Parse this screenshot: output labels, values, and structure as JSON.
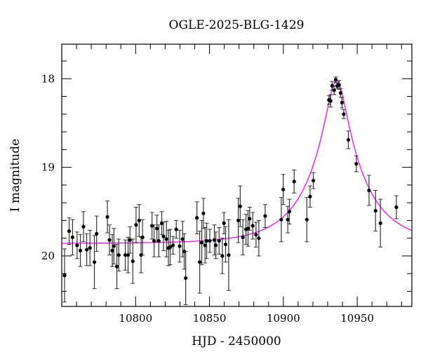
{
  "chart_data": {
    "type": "scatter",
    "title": "OGLE-2025-BLG-1429",
    "xlabel": "HJD - 2450000",
    "ylabel": "I magnitude",
    "xlim": [
      10750,
      10987
    ],
    "ylim": [
      20.57,
      17.61
    ],
    "y_inverted": true,
    "x_ticks": [
      10800,
      10850,
      10900,
      10950
    ],
    "x_tick_labels": [
      "10800",
      "10850",
      "10900",
      "10950"
    ],
    "y_ticks": [
      18,
      19,
      20
    ],
    "y_tick_labels": [
      "18",
      "19",
      "20"
    ],
    "grid": false,
    "model_color": "#ff00ff",
    "point_color": "#000000",
    "x": [
      10751.9,
      10755.0,
      10757.3,
      10760.4,
      10762.6,
      10764.7,
      10766.9,
      10769.1,
      10772.1,
      10773.6,
      10780.9,
      10782.3,
      10784.2,
      10785.3,
      10787.3,
      10788.6,
      10793.0,
      10794.9,
      10796.2,
      10798.1,
      10800.3,
      10802.4,
      10803.7,
      10804.7,
      10811.1,
      10812.5,
      10814.4,
      10815.7,
      10817.7,
      10818.9,
      10820.9,
      10822.2,
      10823.4,
      10825.3,
      10827.5,
      10829.8,
      10831.8,
      10832.9,
      10833.9,
      10841.5,
      10843.4,
      10844.8,
      10845.9,
      10847.0,
      10848.1,
      10850.2,
      10853.3,
      10854.3,
      10856.5,
      10858.7,
      10859.8,
      10860.9,
      10863.0,
      10869.5,
      10870.8,
      10872.6,
      10874.7,
      10876.1,
      10877.2,
      10879.3,
      10881.5,
      10883.4,
      10887.7,
      10898.6,
      10899.9,
      10903.0,
      10904.1,
      10907.3,
      10915.9,
      10918.1,
      10920.3,
      10930.9,
      10932.0,
      10933.0,
      10934.4,
      10935.5,
      10936.4,
      10937.7,
      10938.8,
      10939.7,
      10940.9,
      10944.0,
      10949.4,
      10958.0,
      10962.4,
      10965.7,
      10976.5
    ],
    "y": [
      20.22,
      19.72,
      19.79,
      19.88,
      19.94,
      19.67,
      19.93,
      19.91,
      20.07,
      19.75,
      19.56,
      19.82,
      19.94,
      19.89,
      20.12,
      19.99,
      19.99,
      19.99,
      19.82,
      20.06,
      19.65,
      19.6,
      19.99,
      19.79,
      19.66,
      19.83,
      19.69,
      19.83,
      19.63,
      19.78,
      19.81,
      19.91,
      19.9,
      19.88,
      19.7,
      19.89,
      19.81,
      19.95,
      20.25,
      19.57,
      20.07,
      19.85,
      19.52,
      19.88,
      19.83,
      19.83,
      19.82,
      19.88,
      19.83,
      20.0,
      19.63,
      19.87,
      19.99,
      19.6,
      19.44,
      19.79,
      19.7,
      19.69,
      19.58,
      19.66,
      19.76,
      19.8,
      19.55,
      19.59,
      19.25,
      19.59,
      19.5,
      19.16,
      19.59,
      19.33,
      19.15,
      18.24,
      18.25,
      18.08,
      18.13,
      18.01,
      18.08,
      18.07,
      18.16,
      18.27,
      18.4,
      18.69,
      18.96,
      19.26,
      19.49,
      19.63,
      19.45
    ],
    "yerr": [
      0.3,
      0.15,
      0.2,
      0.15,
      0.18,
      0.17,
      0.18,
      0.2,
      0.3,
      0.2,
      0.18,
      0.17,
      0.18,
      0.2,
      0.25,
      0.18,
      0.17,
      0.2,
      0.15,
      0.25,
      0.2,
      0.18,
      0.2,
      0.2,
      0.15,
      0.18,
      0.15,
      0.18,
      0.13,
      0.16,
      0.2,
      0.2,
      0.2,
      0.1,
      0.1,
      0.18,
      0.2,
      0.2,
      0.3,
      0.18,
      0.35,
      0.25,
      0.17,
      0.2,
      0.2,
      0.13,
      0.17,
      0.15,
      0.15,
      0.2,
      0.12,
      0.2,
      0.4,
      0.25,
      0.23,
      0.2,
      0.17,
      0.2,
      0.13,
      0.15,
      0.14,
      0.2,
      0.13,
      0.25,
      0.17,
      0.15,
      0.14,
      0.13,
      0.25,
      0.12,
      0.09,
      0.05,
      0.07,
      0.05,
      0.05,
      0.03,
      0.03,
      0.05,
      0.05,
      0.06,
      0.05,
      0.1,
      0.09,
      0.17,
      0.23,
      0.27,
      0.13
    ]
  }
}
